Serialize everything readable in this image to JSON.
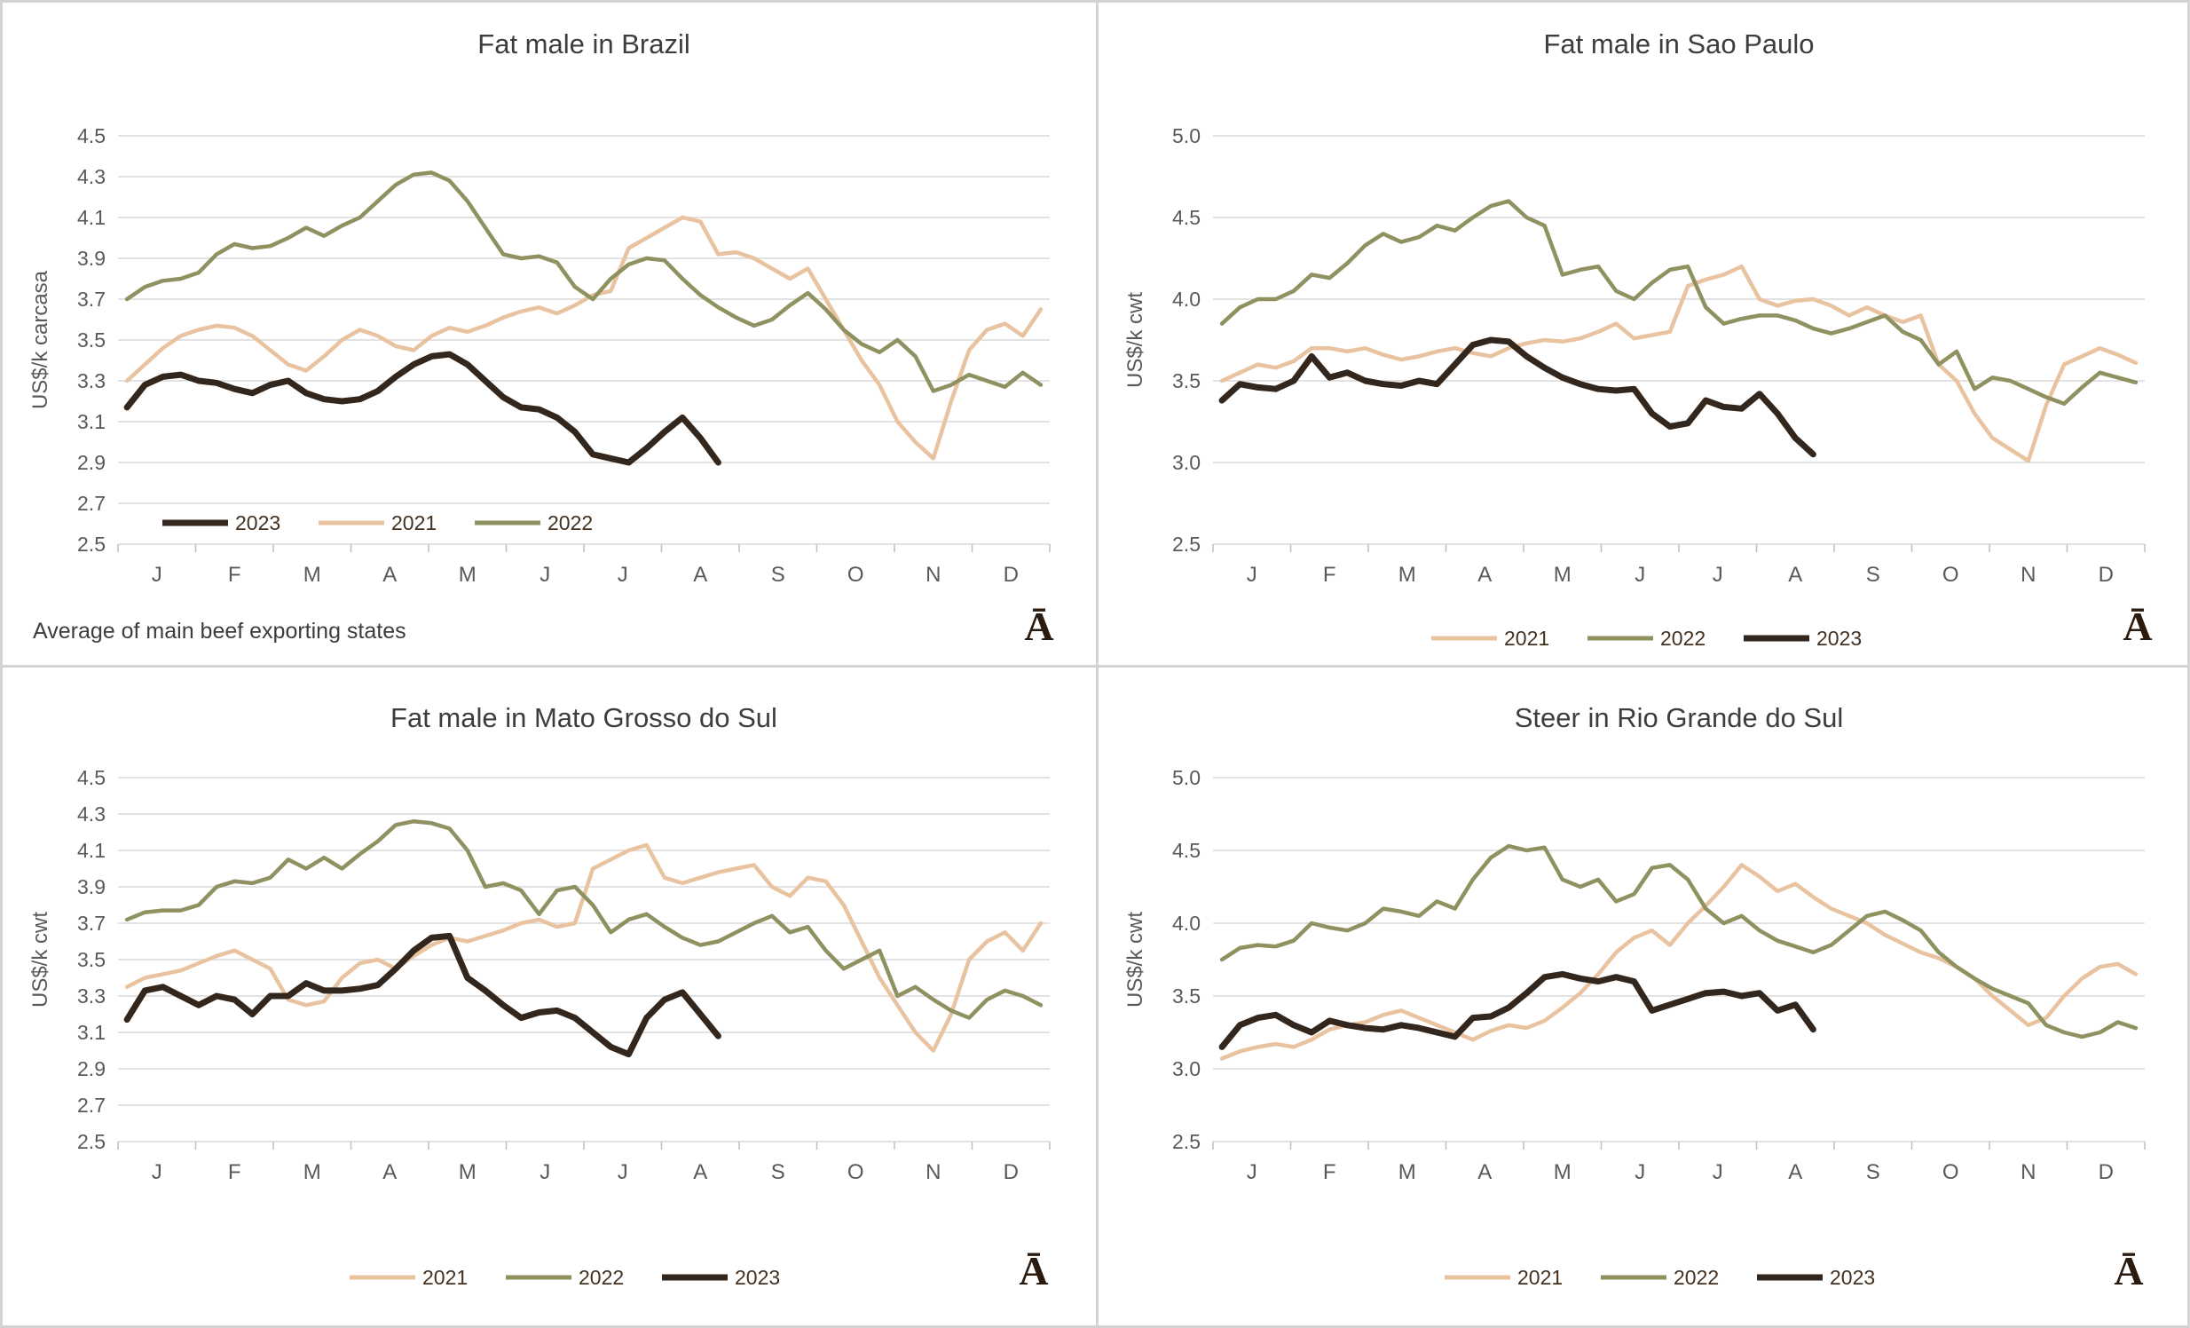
{
  "logo_glyph": "Ā",
  "colors": {
    "2021": "#e9c3a0",
    "2022": "#8f9160",
    "2023": "#33261c",
    "gridline": "#d9d9d9",
    "axis_tick": "#bfbfbf",
    "tick_label": "#595959",
    "title_text": "#3d3d3d",
    "legend_text": "#44301e",
    "logo": "#2b1a0e",
    "panel_border": "#d4d4d4"
  },
  "chart_data": [
    {
      "type": "line",
      "title": "Fat male in Brazil",
      "ylabel": "US$/k carcasa",
      "footnote": "Average of main beef exporting states",
      "ylim": [
        2.5,
        4.5
      ],
      "y_step": 0.2,
      "x_labels": [
        "J",
        "F",
        "M",
        "A",
        "M",
        "J",
        "J",
        "A",
        "S",
        "O",
        "N",
        "D"
      ],
      "legend": [
        "2023",
        "2021",
        "2022"
      ],
      "legend_position": "inside-bottom-left",
      "series": [
        {
          "name": "2021",
          "values": [
            3.3,
            3.38,
            3.46,
            3.52,
            3.55,
            3.57,
            3.56,
            3.52,
            3.45,
            3.38,
            3.35,
            3.42,
            3.5,
            3.55,
            3.52,
            3.47,
            3.45,
            3.52,
            3.56,
            3.54,
            3.57,
            3.61,
            3.64,
            3.66,
            3.63,
            3.67,
            3.72,
            3.74,
            3.95,
            4.0,
            4.05,
            4.1,
            4.08,
            3.92,
            3.93,
            3.9,
            3.85,
            3.8,
            3.85,
            3.7,
            3.55,
            3.4,
            3.28,
            3.1,
            3.0,
            2.92,
            3.2,
            3.45,
            3.55,
            3.58,
            3.52,
            3.65
          ]
        },
        {
          "name": "2022",
          "values": [
            3.7,
            3.76,
            3.79,
            3.8,
            3.83,
            3.92,
            3.97,
            3.95,
            3.96,
            4.0,
            4.05,
            4.01,
            4.06,
            4.1,
            4.18,
            4.26,
            4.31,
            4.32,
            4.28,
            4.18,
            4.05,
            3.92,
            3.9,
            3.91,
            3.88,
            3.76,
            3.7,
            3.8,
            3.87,
            3.9,
            3.89,
            3.8,
            3.72,
            3.66,
            3.61,
            3.57,
            3.6,
            3.67,
            3.73,
            3.65,
            3.55,
            3.48,
            3.44,
            3.5,
            3.42,
            3.25,
            3.28,
            3.33,
            3.3,
            3.27,
            3.34,
            3.28
          ]
        },
        {
          "name": "2023",
          "values": [
            3.17,
            3.28,
            3.32,
            3.33,
            3.3,
            3.29,
            3.26,
            3.24,
            3.28,
            3.3,
            3.24,
            3.21,
            3.2,
            3.21,
            3.25,
            3.32,
            3.38,
            3.42,
            3.43,
            3.38,
            3.3,
            3.22,
            3.17,
            3.16,
            3.12,
            3.05,
            2.94,
            2.92,
            2.9,
            2.97,
            3.05,
            3.12,
            3.02,
            2.9
          ]
        }
      ]
    },
    {
      "type": "line",
      "title": "Fat male in Sao Paulo",
      "ylabel": "US$/k cwt",
      "footnote": "",
      "ylim": [
        2.5,
        5.0
      ],
      "y_step": 0.5,
      "x_labels": [
        "J",
        "F",
        "M",
        "A",
        "M",
        "J",
        "J",
        "A",
        "S",
        "O",
        "N",
        "D"
      ],
      "legend": [
        "2021",
        "2022",
        "2023"
      ],
      "legend_position": "below",
      "series": [
        {
          "name": "2021",
          "values": [
            3.5,
            3.55,
            3.6,
            3.58,
            3.62,
            3.7,
            3.7,
            3.68,
            3.7,
            3.66,
            3.63,
            3.65,
            3.68,
            3.7,
            3.67,
            3.65,
            3.7,
            3.73,
            3.75,
            3.74,
            3.76,
            3.8,
            3.85,
            3.76,
            3.78,
            3.8,
            4.08,
            4.12,
            4.15,
            4.2,
            4.0,
            3.96,
            3.99,
            4.0,
            3.96,
            3.9,
            3.95,
            3.9,
            3.86,
            3.9,
            3.6,
            3.5,
            3.3,
            3.15,
            3.08,
            3.01,
            3.35,
            3.6,
            3.65,
            3.7,
            3.66,
            3.61
          ]
        },
        {
          "name": "2022",
          "values": [
            3.85,
            3.95,
            4.0,
            4.0,
            4.05,
            4.15,
            4.13,
            4.22,
            4.33,
            4.4,
            4.35,
            4.38,
            4.45,
            4.42,
            4.5,
            4.57,
            4.6,
            4.5,
            4.45,
            4.15,
            4.18,
            4.2,
            4.05,
            4.0,
            4.1,
            4.18,
            4.2,
            3.95,
            3.85,
            3.88,
            3.9,
            3.9,
            3.87,
            3.82,
            3.79,
            3.82,
            3.86,
            3.9,
            3.8,
            3.75,
            3.6,
            3.68,
            3.45,
            3.52,
            3.5,
            3.45,
            3.4,
            3.36,
            3.46,
            3.55,
            3.52,
            3.49
          ]
        },
        {
          "name": "2023",
          "values": [
            3.38,
            3.48,
            3.46,
            3.45,
            3.5,
            3.65,
            3.52,
            3.55,
            3.5,
            3.48,
            3.47,
            3.5,
            3.48,
            3.6,
            3.72,
            3.75,
            3.74,
            3.65,
            3.58,
            3.52,
            3.48,
            3.45,
            3.44,
            3.45,
            3.3,
            3.22,
            3.24,
            3.38,
            3.34,
            3.33,
            3.42,
            3.3,
            3.15,
            3.05
          ]
        }
      ]
    },
    {
      "type": "line",
      "title": "Fat male in Mato Grosso do Sul",
      "ylabel": "US$/k cwt",
      "footnote": "",
      "ylim": [
        2.5,
        4.5
      ],
      "y_step": 0.2,
      "x_labels": [
        "J",
        "F",
        "M",
        "A",
        "M",
        "J",
        "J",
        "A",
        "S",
        "O",
        "N",
        "D"
      ],
      "legend": [
        "2021",
        "2022",
        "2023"
      ],
      "legend_position": "below",
      "series": [
        {
          "name": "2021",
          "values": [
            3.35,
            3.4,
            3.42,
            3.44,
            3.48,
            3.52,
            3.55,
            3.5,
            3.45,
            3.28,
            3.25,
            3.27,
            3.4,
            3.48,
            3.5,
            3.45,
            3.52,
            3.58,
            3.62,
            3.6,
            3.63,
            3.66,
            3.7,
            3.72,
            3.68,
            3.7,
            4.0,
            4.05,
            4.1,
            4.13,
            3.95,
            3.92,
            3.95,
            3.98,
            4.0,
            4.02,
            3.9,
            3.85,
            3.95,
            3.93,
            3.8,
            3.6,
            3.4,
            3.25,
            3.1,
            3.0,
            3.2,
            3.5,
            3.6,
            3.65,
            3.55,
            3.7
          ]
        },
        {
          "name": "2022",
          "values": [
            3.72,
            3.76,
            3.77,
            3.77,
            3.8,
            3.9,
            3.93,
            3.92,
            3.95,
            4.05,
            4.0,
            4.06,
            4.0,
            4.08,
            4.15,
            4.24,
            4.26,
            4.25,
            4.22,
            4.1,
            3.9,
            3.92,
            3.88,
            3.75,
            3.88,
            3.9,
            3.8,
            3.65,
            3.72,
            3.75,
            3.68,
            3.62,
            3.58,
            3.6,
            3.65,
            3.7,
            3.74,
            3.65,
            3.68,
            3.55,
            3.45,
            3.5,
            3.55,
            3.3,
            3.35,
            3.28,
            3.22,
            3.18,
            3.28,
            3.33,
            3.3,
            3.25
          ]
        },
        {
          "name": "2023",
          "values": [
            3.17,
            3.33,
            3.35,
            3.3,
            3.25,
            3.3,
            3.28,
            3.2,
            3.3,
            3.3,
            3.37,
            3.33,
            3.33,
            3.34,
            3.36,
            3.45,
            3.55,
            3.62,
            3.63,
            3.4,
            3.33,
            3.25,
            3.18,
            3.21,
            3.22,
            3.18,
            3.1,
            3.02,
            2.98,
            3.18,
            3.28,
            3.32,
            3.2,
            3.08
          ]
        }
      ]
    },
    {
      "type": "line",
      "title": "Steer in Rio Grande do Sul",
      "ylabel": "US$/k cwt",
      "footnote": "",
      "ylim": [
        2.5,
        5.0
      ],
      "y_step": 0.5,
      "x_labels": [
        "J",
        "F",
        "M",
        "A",
        "M",
        "J",
        "J",
        "A",
        "S",
        "O",
        "N",
        "D"
      ],
      "legend": [
        "2021",
        "2022",
        "2023"
      ],
      "legend_position": "below",
      "series": [
        {
          "name": "2021",
          "values": [
            3.07,
            3.12,
            3.15,
            3.17,
            3.15,
            3.2,
            3.27,
            3.3,
            3.32,
            3.37,
            3.4,
            3.35,
            3.3,
            3.25,
            3.2,
            3.26,
            3.3,
            3.28,
            3.33,
            3.42,
            3.52,
            3.65,
            3.8,
            3.9,
            3.95,
            3.85,
            4.0,
            4.12,
            4.25,
            4.4,
            4.32,
            4.22,
            4.27,
            4.18,
            4.1,
            4.05,
            4.0,
            3.92,
            3.86,
            3.8,
            3.76,
            3.7,
            3.62,
            3.5,
            3.4,
            3.3,
            3.35,
            3.5,
            3.62,
            3.7,
            3.72,
            3.65
          ]
        },
        {
          "name": "2022",
          "values": [
            3.75,
            3.83,
            3.85,
            3.84,
            3.88,
            4.0,
            3.97,
            3.95,
            4.0,
            4.1,
            4.08,
            4.05,
            4.15,
            4.1,
            4.3,
            4.45,
            4.53,
            4.5,
            4.52,
            4.3,
            4.25,
            4.3,
            4.15,
            4.2,
            4.38,
            4.4,
            4.3,
            4.1,
            4.0,
            4.05,
            3.95,
            3.88,
            3.84,
            3.8,
            3.85,
            3.95,
            4.05,
            4.08,
            4.02,
            3.95,
            3.8,
            3.7,
            3.62,
            3.55,
            3.5,
            3.45,
            3.3,
            3.25,
            3.22,
            3.25,
            3.32,
            3.28
          ]
        },
        {
          "name": "2023",
          "values": [
            3.15,
            3.3,
            3.35,
            3.37,
            3.3,
            3.25,
            3.33,
            3.3,
            3.28,
            3.27,
            3.3,
            3.28,
            3.25,
            3.22,
            3.35,
            3.36,
            3.42,
            3.52,
            3.63,
            3.65,
            3.62,
            3.6,
            3.63,
            3.6,
            3.4,
            3.44,
            3.48,
            3.52,
            3.53,
            3.5,
            3.52,
            3.4,
            3.44,
            3.27
          ]
        }
      ]
    }
  ]
}
